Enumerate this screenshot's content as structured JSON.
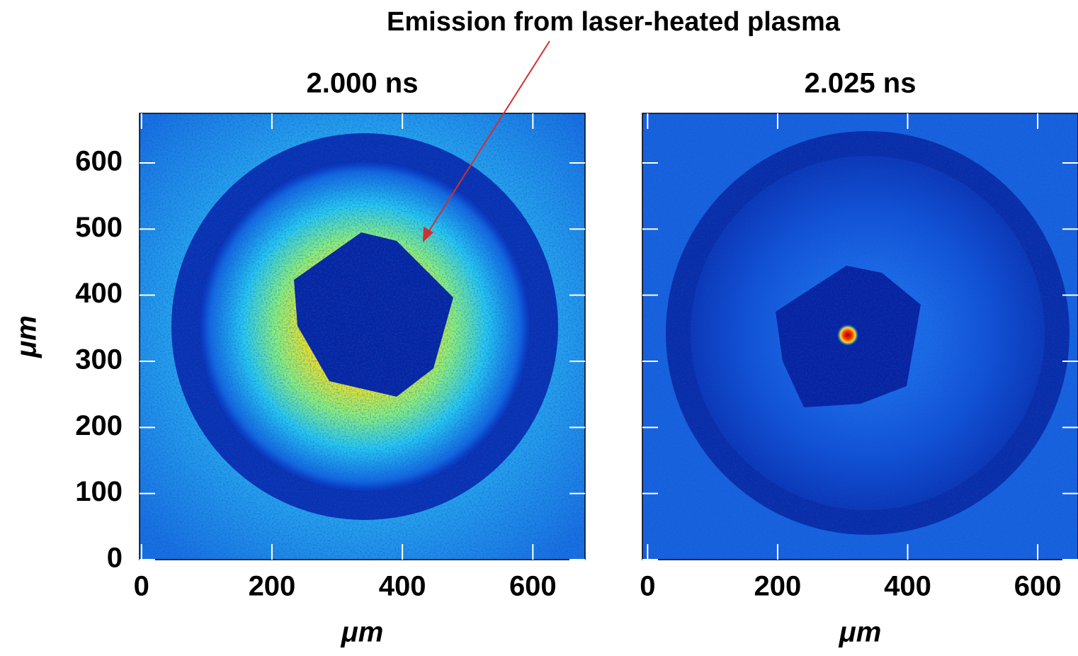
{
  "annotation": "Emission from laser-heated plasma",
  "chart_data": [
    {
      "type": "image",
      "title": "2.000 ns",
      "xlabel": "μm",
      "ylabel": "μm",
      "xlim": [
        -3,
        680
      ],
      "ylim": [
        0,
        675
      ],
      "xticks": [
        0,
        200,
        400,
        600
      ],
      "yticks": [
        0,
        100,
        200,
        300,
        400,
        500,
        600
      ]
    },
    {
      "type": "image",
      "title": "2.025 ns",
      "xlabel": "μm",
      "xlim": [
        -8,
        662
      ],
      "ylim": [
        0,
        675
      ],
      "xticks": [
        0,
        200,
        400,
        600
      ]
    }
  ]
}
